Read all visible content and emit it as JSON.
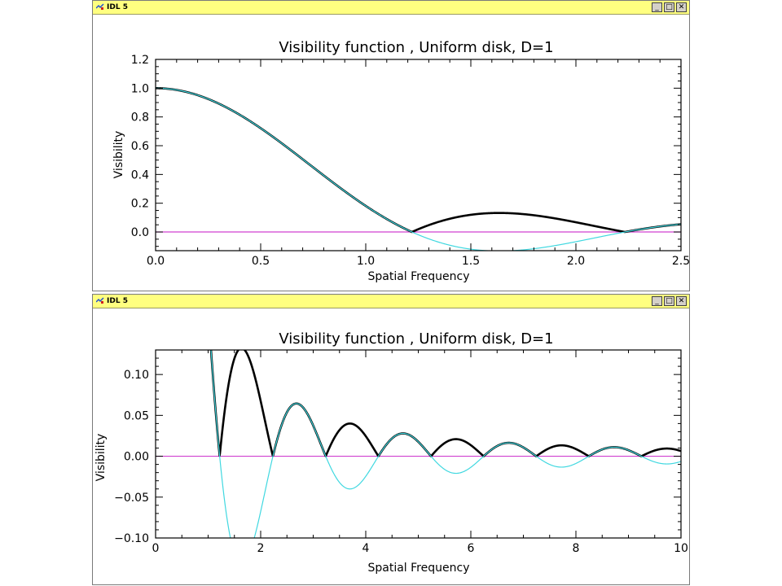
{
  "windows": [
    {
      "title": "IDL 5",
      "minimize_glyph": "_",
      "maximize_glyph": "□",
      "close_glyph": "✕",
      "icon": "idl-app-icon"
    },
    {
      "title": "IDL 5",
      "minimize_glyph": "_",
      "maximize_glyph": "□",
      "close_glyph": "✕",
      "icon": "idl-app-icon"
    }
  ],
  "colors": {
    "abs_curve": "#000000",
    "signed_curve": "#40d8e0",
    "zero_line": "#d040d0",
    "titlebar": "#ffff80"
  },
  "chart_data": [
    {
      "type": "line",
      "title": "Visibility function , Uniform disk, D=1",
      "xlabel": "Spatial Frequency",
      "ylabel": "Visibility",
      "xlim": [
        0.0,
        2.5
      ],
      "ylim": [
        -0.13,
        1.2
      ],
      "xticks": [
        "0.0",
        "0.5",
        "1.0",
        "1.5",
        "2.0",
        "2.5"
      ],
      "yticks": [
        "0.0",
        "0.2",
        "0.4",
        "0.6",
        "0.8",
        "1.0",
        "1.2"
      ],
      "function": "2*J1(pi*D*x)/(pi*D*x)",
      "disk_diameter": 1,
      "series": [
        {
          "style": "abs",
          "color": "#000000"
        },
        {
          "style": "signed",
          "color": "#40d8e0"
        },
        {
          "style": "zero",
          "color": "#d040d0"
        }
      ],
      "grid": false
    },
    {
      "type": "line",
      "title": "Visibility function , Uniform disk, D=1",
      "xlabel": "Spatial Frequency",
      "ylabel": "Visibility",
      "xlim": [
        0,
        10
      ],
      "ylim": [
        -0.1,
        0.13
      ],
      "xticks": [
        "0",
        "2",
        "4",
        "6",
        "8",
        "10"
      ],
      "yticks": [
        "−0.10",
        "−0.05",
        "0.00",
        "0.05",
        "0.10"
      ],
      "function": "2*J1(pi*D*x)/(pi*D*x)",
      "disk_diameter": 1,
      "series": [
        {
          "style": "abs",
          "color": "#000000"
        },
        {
          "style": "signed",
          "color": "#40d8e0"
        },
        {
          "style": "zero",
          "color": "#d040d0"
        }
      ],
      "grid": false
    }
  ]
}
